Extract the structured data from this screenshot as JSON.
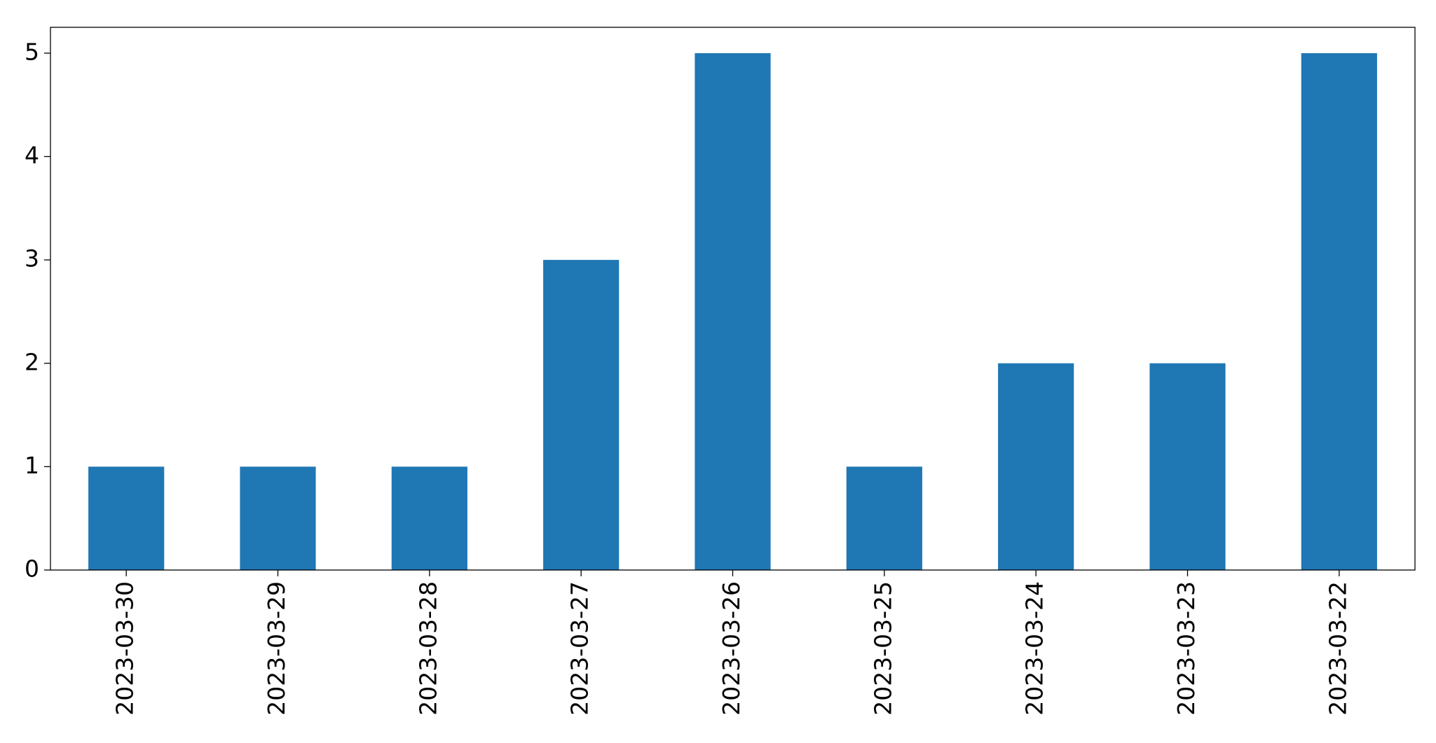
{
  "chart_data": {
    "type": "bar",
    "categories": [
      "2023-03-30",
      "2023-03-29",
      "2023-03-28",
      "2023-03-27",
      "2023-03-26",
      "2023-03-25",
      "2023-03-24",
      "2023-03-23",
      "2023-03-22"
    ],
    "values": [
      1,
      1,
      1,
      3,
      5,
      1,
      2,
      2,
      5
    ],
    "color": "#1f77b4",
    "ylim": [
      0,
      5.25
    ],
    "yticks": [
      0,
      1,
      2,
      3,
      4,
      5
    ],
    "grid": false
  }
}
